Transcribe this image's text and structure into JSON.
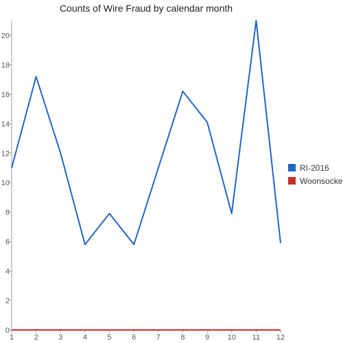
{
  "chart_data": {
    "type": "line",
    "title": "Counts of Wire Fraud by calendar month",
    "xlabel": "",
    "ylabel": "",
    "x": [
      1,
      2,
      3,
      4,
      5,
      6,
      7,
      8,
      9,
      10,
      11,
      12
    ],
    "x_tick_labels": [
      "1",
      "2",
      "3",
      "4",
      "5",
      "6",
      "7",
      "8",
      "9",
      "10",
      "11",
      "12"
    ],
    "y_tick_labels": [
      "0",
      "2",
      "4",
      "6",
      "8",
      "10",
      "12",
      "14",
      "16",
      "18",
      "20"
    ],
    "ylim": [
      0,
      21
    ],
    "xlim": [
      1,
      12
    ],
    "grid": false,
    "legend_position": "right",
    "series": [
      {
        "name": "RI-2016",
        "color": "#1f66c7",
        "values": [
          11,
          17.2,
          12,
          5.8,
          7.9,
          5.8,
          11,
          16.2,
          14.1,
          7.9,
          21,
          5.9
        ]
      },
      {
        "name": "Woonsocket",
        "color": "#c8312a",
        "values": [
          0,
          0,
          0,
          0,
          0,
          0,
          0,
          0,
          0,
          0,
          0,
          0
        ]
      }
    ]
  }
}
